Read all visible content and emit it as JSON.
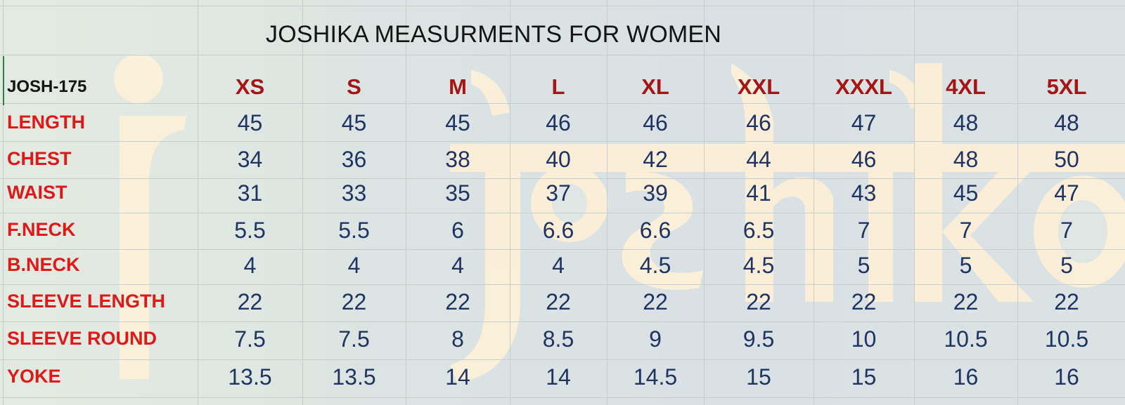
{
  "title": "JOSHIKA MEASURMENTS FOR WOMEN",
  "watermark": "joshika",
  "style_code": "JOSH-175",
  "sizes": [
    "XS",
    "S",
    "M",
    "L",
    "XL",
    "XXL",
    "XXXL",
    "4XL",
    "5XL"
  ],
  "rows": [
    {
      "label": "LENGTH",
      "values": [
        "45",
        "45",
        "45",
        "46",
        "46",
        "46",
        "47",
        "48",
        "48"
      ]
    },
    {
      "label": "CHEST",
      "values": [
        "34",
        "36",
        "38",
        "40",
        "42",
        "44",
        "46",
        "48",
        "50"
      ]
    },
    {
      "label": "WAIST",
      "values": [
        "31",
        "33",
        "35",
        "37",
        "39",
        "41",
        "43",
        "45",
        "47"
      ]
    },
    {
      "label": "F.NECK",
      "values": [
        "5.5",
        "5.5",
        "6",
        "6.6",
        "6.6",
        "6.5",
        "7",
        "7",
        "7"
      ]
    },
    {
      "label": "B.NECK",
      "values": [
        "4",
        "4",
        "4",
        "4",
        "4.5",
        "4.5",
        "5",
        "5",
        "5"
      ]
    },
    {
      "label": "SLEEVE LENGTH",
      "values": [
        "22",
        "22",
        "22",
        "22",
        "22",
        "22",
        "22",
        "22",
        "22"
      ]
    },
    {
      "label": "SLEEVE ROUND",
      "values": [
        "7.5",
        "7.5",
        "8",
        "8.5",
        "9",
        "9.5",
        "10",
        "10.5",
        "10.5"
      ]
    },
    {
      "label": "YOKE",
      "values": [
        "13.5",
        "13.5",
        "14",
        "14",
        "14.5",
        "15",
        "15",
        "16",
        "16"
      ]
    }
  ],
  "colors": {
    "label_red": "#e01818",
    "size_red": "#a51515",
    "value_navy": "#1f3463",
    "watermark_cream": "#fdf0d8"
  }
}
